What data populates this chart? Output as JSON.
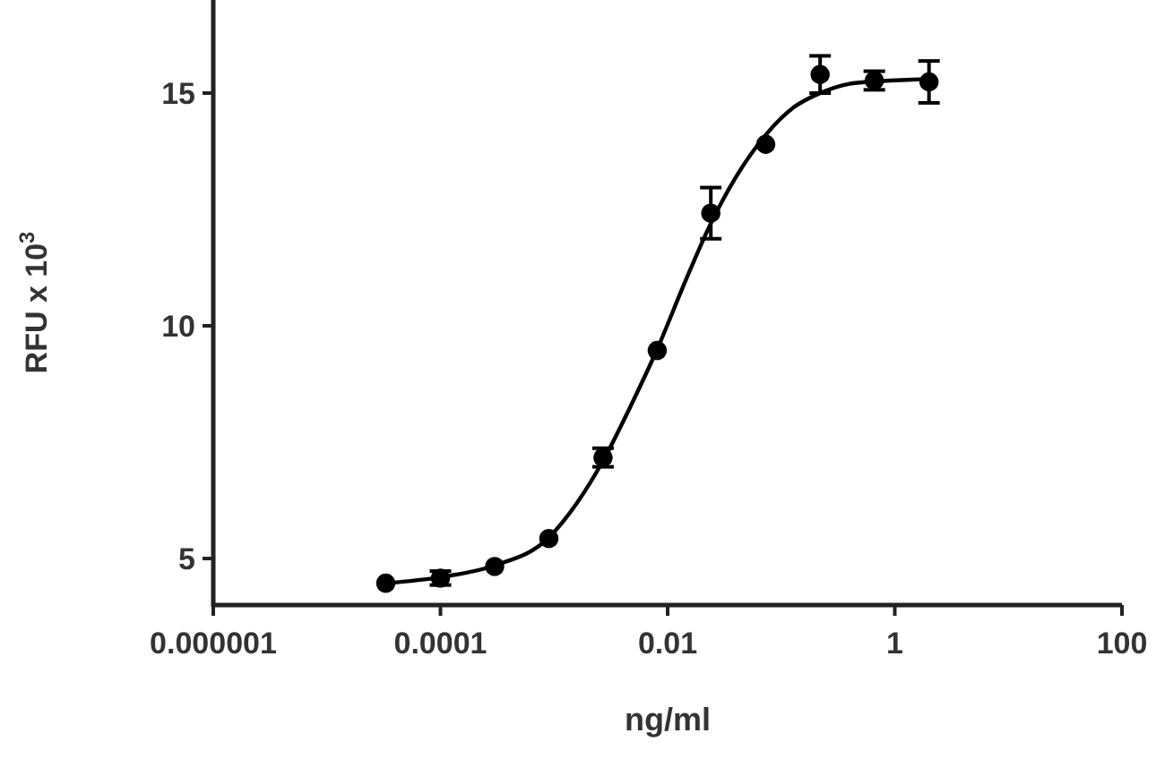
{
  "chart_data": {
    "type": "scatter",
    "xlabel": "ng/ml",
    "ylabel": "RFU x 10$^{3}$",
    "log": "x",
    "xlim": [
      1e-06,
      100
    ],
    "xticks": [
      {
        "value": 1e-06,
        "label": "0.000001"
      },
      {
        "value": 0.0001,
        "label": "0.0001"
      },
      {
        "value": 0.01,
        "label": "0.01"
      },
      1,
      100
    ],
    "ylim": [
      4,
      17
    ],
    "yticks": [
      5,
      10,
      15
    ],
    "grid": false,
    "marker": "circle",
    "series": [
      {
        "color": "#000000",
        "x": [
          3.3e-05,
          0.0001,
          0.0003,
          0.0009,
          0.0027,
          0.0081,
          0.024,
          0.073,
          0.22,
          0.66,
          2
        ],
        "values": [
          4.47,
          4.58,
          4.83,
          5.43,
          7.17,
          9.47,
          12.42,
          13.9,
          15.4,
          15.27,
          15.24
        ],
        "errors": [
          null,
          0.15,
          null,
          null,
          0.2,
          null,
          0.55,
          null,
          0.4,
          0.2,
          0.45
        ]
      },
      {
        "type": "line",
        "color": "#000000",
        "line_style": "solid",
        "marker": "none",
        "x": [
          3.3e-05,
          0.0001,
          0.0003,
          0.0009,
          0.0016,
          0.0027,
          0.005,
          0.0081,
          0.014,
          0.024,
          0.04,
          0.073,
          0.13,
          0.22,
          0.4,
          0.66,
          2
        ],
        "values": [
          4.47,
          4.6,
          4.85,
          5.45,
          6.2,
          7.1,
          8.4,
          9.5,
          10.9,
          12.2,
          13.2,
          14.1,
          14.7,
          15.0,
          15.2,
          15.25,
          15.3
        ]
      }
    ]
  }
}
